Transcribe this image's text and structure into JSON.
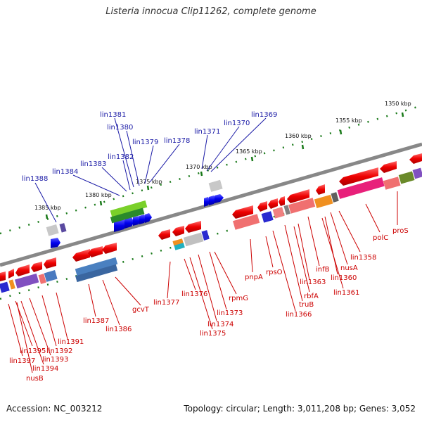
{
  "title": "Listeria innocua Clip11262, complete genome",
  "footer": {
    "accession": "Accession: NC_003212",
    "topology": "Topology: circular; Length: 3,011,208 bp; Genes: 3,052"
  },
  "colors": {
    "forward_label": "#1a1aa6",
    "reverse_label": "#cc0000",
    "backbone": "#888888",
    "tick": "#1a7a1a"
  },
  "ticks": [
    {
      "label": "1350 kbp"
    },
    {
      "label": "1355 kbp"
    },
    {
      "label": "1360 kbp"
    },
    {
      "label": "1365 kbp"
    },
    {
      "label": "1370 kbp"
    },
    {
      "label": "1375 kbp"
    },
    {
      "label": "1380 kbp"
    },
    {
      "label": "1385 kbp"
    }
  ],
  "forward_labels": [
    "lin1369",
    "lin1370",
    "lin1371",
    "lin1378",
    "lin1379",
    "lin1380",
    "lin1381",
    "lin1382",
    "lin1383",
    "lin1384",
    "lin1388"
  ],
  "reverse_labels": [
    "proS",
    "polC",
    "lin1358",
    "nusA",
    "lin1360",
    "lin1361",
    "infB",
    "rbfA",
    "lin1363",
    "truB",
    "lin1366",
    "rpsO",
    "pnpA",
    "rpmG",
    "lin1373",
    "lin1374",
    "lin1375",
    "lin1376",
    "lin1377",
    "gcvT",
    "lin1386",
    "lin1387",
    "lin1391",
    "lin1392",
    "lin1393",
    "lin1394",
    "lin1395",
    "lin1397",
    "nusB"
  ]
}
